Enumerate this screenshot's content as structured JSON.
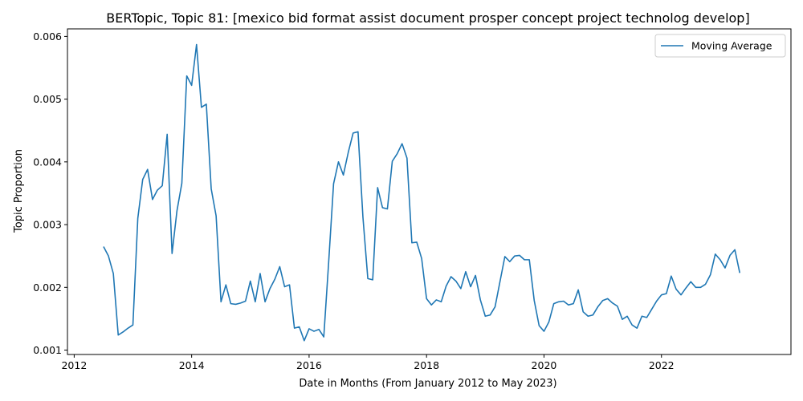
{
  "chart_data": {
    "type": "line",
    "title": "BERTopic, Topic 81: [mexico bid format assist document prosper concept project technolog develop]",
    "xlabel": "Date in Months (From January 2012 to May 2023)",
    "ylabel": "Topic Proportion",
    "xlim": [
      "2011-11-20",
      "2024-03-15"
    ],
    "ylim": [
      0.00093,
      0.00612
    ],
    "x_ticks": [
      "2012",
      "2014",
      "2016",
      "2018",
      "2020",
      "2022"
    ],
    "y_ticks": [
      "0.001",
      "0.002",
      "0.003",
      "0.004",
      "0.005",
      "0.006"
    ],
    "grid": false,
    "legend_position": "top-right",
    "series": [
      {
        "name": "Moving Average",
        "color": "#1f77b4",
        "x": [
          "2012-07",
          "2012-08",
          "2012-09",
          "2012-10",
          "2012-11",
          "2012-12",
          "2013-01",
          "2013-02",
          "2013-03",
          "2013-04",
          "2013-05",
          "2013-06",
          "2013-07",
          "2013-08",
          "2013-09",
          "2013-10",
          "2013-11",
          "2013-12",
          "2014-01",
          "2014-02",
          "2014-03",
          "2014-04",
          "2014-05",
          "2014-06",
          "2014-07",
          "2014-08",
          "2014-09",
          "2014-10",
          "2014-11",
          "2014-12",
          "2015-01",
          "2015-02",
          "2015-03",
          "2015-04",
          "2015-05",
          "2015-06",
          "2015-07",
          "2015-08",
          "2015-09",
          "2015-10",
          "2015-11",
          "2015-12",
          "2016-01",
          "2016-02",
          "2016-03",
          "2016-04",
          "2016-05",
          "2016-06",
          "2016-07",
          "2016-08",
          "2016-09",
          "2016-10",
          "2016-11",
          "2016-12",
          "2017-01",
          "2017-02",
          "2017-03",
          "2017-04",
          "2017-05",
          "2017-06",
          "2017-07",
          "2017-08",
          "2017-09",
          "2017-10",
          "2017-11",
          "2017-12",
          "2018-01",
          "2018-02",
          "2018-03",
          "2018-04",
          "2018-05",
          "2018-06",
          "2018-07",
          "2018-08",
          "2018-09",
          "2018-10",
          "2018-11",
          "2018-12",
          "2019-01",
          "2019-02",
          "2019-03",
          "2019-04",
          "2019-05",
          "2019-06",
          "2019-07",
          "2019-08",
          "2019-09",
          "2019-10",
          "2019-11",
          "2019-12",
          "2020-01",
          "2020-02",
          "2020-03",
          "2020-04",
          "2020-05",
          "2020-06",
          "2020-07",
          "2020-08",
          "2020-09",
          "2020-10",
          "2020-11",
          "2020-12",
          "2021-01",
          "2021-02",
          "2021-03",
          "2021-04",
          "2021-05",
          "2021-06",
          "2021-07",
          "2021-08",
          "2021-09",
          "2021-10",
          "2021-11",
          "2021-12",
          "2022-01",
          "2022-02",
          "2022-03",
          "2022-04",
          "2022-05",
          "2022-06",
          "2022-07",
          "2022-08",
          "2022-09",
          "2022-10",
          "2022-11",
          "2022-12",
          "2023-01",
          "2023-02",
          "2023-03",
          "2023-04",
          "2023-05"
        ],
        "values": [
          0.00265,
          0.0025,
          0.00222,
          0.00124,
          0.00129,
          0.00135,
          0.0014,
          0.0031,
          0.00372,
          0.00388,
          0.0034,
          0.00355,
          0.00362,
          0.00444,
          0.00254,
          0.00322,
          0.00366,
          0.00537,
          0.00522,
          0.00587,
          0.00487,
          0.00492,
          0.00357,
          0.00314,
          0.00177,
          0.00204,
          0.00174,
          0.00173,
          0.00175,
          0.00178,
          0.0021,
          0.00177,
          0.00222,
          0.00177,
          0.00198,
          0.00213,
          0.00233,
          0.00201,
          0.00204,
          0.00135,
          0.00137,
          0.00115,
          0.00134,
          0.0013,
          0.00133,
          0.00121,
          0.0024,
          0.00365,
          0.004,
          0.00379,
          0.00415,
          0.00446,
          0.00448,
          0.00312,
          0.00214,
          0.00212,
          0.00359,
          0.00327,
          0.00325,
          0.00401,
          0.00413,
          0.00429,
          0.00406,
          0.00271,
          0.00272,
          0.00246,
          0.00182,
          0.00172,
          0.0018,
          0.00177,
          0.00202,
          0.00217,
          0.0021,
          0.00198,
          0.00225,
          0.00201,
          0.00219,
          0.0018,
          0.00154,
          0.00156,
          0.00169,
          0.00209,
          0.00249,
          0.00241,
          0.0025,
          0.00251,
          0.00244,
          0.00244,
          0.00179,
          0.00139,
          0.0013,
          0.00145,
          0.00174,
          0.00177,
          0.00178,
          0.00172,
          0.00174,
          0.00196,
          0.00161,
          0.00154,
          0.00156,
          0.00169,
          0.00179,
          0.00182,
          0.00175,
          0.0017,
          0.00149,
          0.00154,
          0.0014,
          0.00135,
          0.00154,
          0.00152,
          0.00165,
          0.00178,
          0.00188,
          0.0019,
          0.00218,
          0.00197,
          0.00188,
          0.00199,
          0.00209,
          0.002,
          0.002,
          0.00205,
          0.0022,
          0.00253,
          0.00244,
          0.00231,
          0.00251,
          0.0026,
          0.00223
        ]
      }
    ]
  }
}
